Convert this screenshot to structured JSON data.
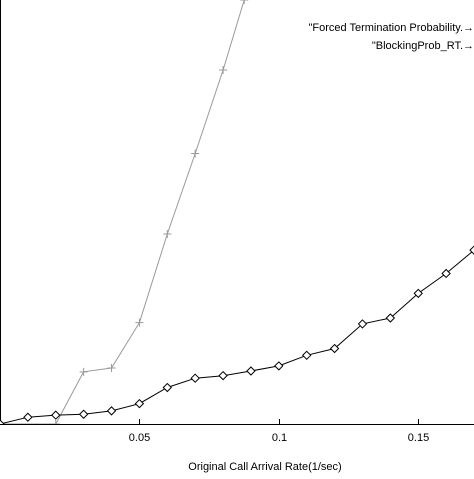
{
  "chart_data": {
    "type": "line",
    "title": "",
    "xlabel": "Original Call Arrival Rate(1/sec)",
    "ylabel": "",
    "xlim": [
      0,
      0.17
    ],
    "ylim": [
      0,
      1
    ],
    "grid": false,
    "legend_placement": "top-right",
    "x_ticks": [
      {
        "value": 0.05,
        "label": "0.05"
      },
      {
        "value": 0.1,
        "label": "0.1"
      },
      {
        "value": 0.15,
        "label": "0.15"
      }
    ],
    "series": [
      {
        "name": "\"Forced Termination Probability.→",
        "marker": "plus",
        "color": "#999999",
        "points": [
          [
            0,
            0.0
          ],
          [
            0.02,
            0.0
          ],
          [
            0.03,
            0.123
          ],
          [
            0.04,
            0.132
          ],
          [
            0.05,
            0.239
          ],
          [
            0.06,
            0.448
          ],
          [
            0.07,
            0.638
          ],
          [
            0.08,
            0.835
          ],
          [
            0.0876,
            1.0
          ]
        ]
      },
      {
        "name": "\"BlockingProb_RT.→",
        "marker": "diamond",
        "color": "#000000",
        "points": [
          [
            0,
            0.0
          ],
          [
            0.01,
            0.016
          ],
          [
            0.02,
            0.021
          ],
          [
            0.03,
            0.023
          ],
          [
            0.04,
            0.031
          ],
          [
            0.05,
            0.048
          ],
          [
            0.06,
            0.086
          ],
          [
            0.07,
            0.108
          ],
          [
            0.08,
            0.114
          ],
          [
            0.09,
            0.125
          ],
          [
            0.1,
            0.137
          ],
          [
            0.11,
            0.162
          ],
          [
            0.12,
            0.178
          ],
          [
            0.13,
            0.236
          ],
          [
            0.14,
            0.25
          ],
          [
            0.15,
            0.308
          ],
          [
            0.16,
            0.355
          ],
          [
            0.17,
            0.41
          ]
        ]
      }
    ]
  }
}
